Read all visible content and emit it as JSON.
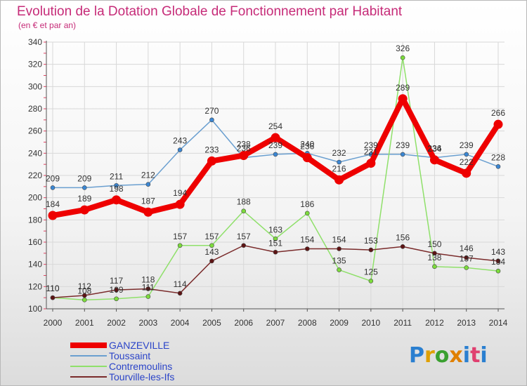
{
  "chart_data": {
    "type": "line",
    "title": "Evolution de la Dotation Globale de Fonctionnement par Habitant",
    "subtitle": "(en € et par an)",
    "x": [
      "2000",
      "2001",
      "2002",
      "2003",
      "2004",
      "2005",
      "2006",
      "2007",
      "2008",
      "2009",
      "2010",
      "2011",
      "2012",
      "2013",
      "2014"
    ],
    "ylim": [
      100,
      340
    ],
    "yticks": [
      100,
      120,
      140,
      160,
      180,
      200,
      220,
      240,
      260,
      280,
      300,
      320,
      340
    ],
    "grid": true,
    "legend_position": "bottom-left",
    "series": [
      {
        "name": "Toussaint",
        "color": "#6a9fd0",
        "point_color": "#3b87d4",
        "values": [
          209,
          209,
          211,
          212,
          243,
          270,
          236,
          239,
          240,
          232,
          239,
          239,
          236,
          239,
          228
        ]
      },
      {
        "name": "Contremoulins",
        "color": "#8fe06a",
        "point_color": "#7cdc3c",
        "values": [
          110,
          108,
          109,
          111,
          157,
          157,
          188,
          163,
          186,
          135,
          125,
          326,
          138,
          137,
          134
        ]
      },
      {
        "name": "Tourville-les-Ifs",
        "color": "#7a2b2b",
        "point_color": "#5e1414",
        "values": [
          110,
          112,
          117,
          118,
          114,
          143,
          157,
          151,
          154,
          154,
          153,
          156,
          150,
          146,
          143
        ]
      },
      {
        "name": "GANZEVILLE",
        "color": "#ee0000",
        "point_color": "#ee0000",
        "values": [
          184,
          189,
          198,
          187,
          194,
          233,
          238,
          254,
          236,
          216,
          231,
          289,
          234,
          222,
          266
        ]
      }
    ],
    "data_labels": [
      {
        "series": 3,
        "i": 0,
        "text": "184"
      },
      {
        "series": 3,
        "i": 1,
        "text": "189"
      },
      {
        "series": 3,
        "i": 2,
        "text": "198"
      },
      {
        "series": 3,
        "i": 3,
        "text": "187"
      },
      {
        "series": 3,
        "i": 4,
        "text": "194"
      },
      {
        "series": 3,
        "i": 5,
        "text": "233"
      },
      {
        "series": 3,
        "i": 6,
        "text": "238"
      },
      {
        "series": 3,
        "i": 7,
        "text": "254"
      },
      {
        "series": 3,
        "i": 8,
        "text": "236"
      },
      {
        "series": 3,
        "i": 9,
        "text": "216"
      },
      {
        "series": 3,
        "i": 10,
        "text": "231"
      },
      {
        "series": 3,
        "i": 11,
        "text": "289"
      },
      {
        "series": 3,
        "i": 12,
        "text": "234"
      },
      {
        "series": 3,
        "i": 13,
        "text": "222"
      },
      {
        "series": 3,
        "i": 14,
        "text": "266"
      },
      {
        "series": 0,
        "i": 0,
        "text": "209"
      },
      {
        "series": 0,
        "i": 1,
        "text": "209"
      },
      {
        "series": 0,
        "i": 2,
        "text": "211"
      },
      {
        "series": 0,
        "i": 3,
        "text": "212"
      },
      {
        "series": 0,
        "i": 4,
        "text": "243"
      },
      {
        "series": 0,
        "i": 5,
        "text": "270"
      },
      {
        "series": 0,
        "i": 6,
        "text": "236"
      },
      {
        "series": 0,
        "i": 7,
        "text": "239"
      },
      {
        "series": 0,
        "i": 8,
        "text": "240"
      },
      {
        "series": 0,
        "i": 9,
        "text": "232"
      },
      {
        "series": 0,
        "i": 10,
        "text": "239"
      },
      {
        "series": 0,
        "i": 11,
        "text": "239"
      },
      {
        "series": 0,
        "i": 12,
        "text": "236"
      },
      {
        "series": 0,
        "i": 13,
        "text": "239"
      },
      {
        "series": 0,
        "i": 14,
        "text": "228"
      },
      {
        "series": 1,
        "i": 0,
        "text": "110"
      },
      {
        "series": 1,
        "i": 1,
        "text": "108"
      },
      {
        "series": 1,
        "i": 2,
        "text": "109"
      },
      {
        "series": 1,
        "i": 3,
        "text": "111"
      },
      {
        "series": 1,
        "i": 4,
        "text": "157"
      },
      {
        "series": 1,
        "i": 5,
        "text": "157"
      },
      {
        "series": 1,
        "i": 6,
        "text": "188"
      },
      {
        "series": 1,
        "i": 7,
        "text": "163"
      },
      {
        "series": 1,
        "i": 8,
        "text": "186"
      },
      {
        "series": 1,
        "i": 9,
        "text": "135"
      },
      {
        "series": 1,
        "i": 10,
        "text": "125"
      },
      {
        "series": 1,
        "i": 11,
        "text": "326"
      },
      {
        "series": 1,
        "i": 12,
        "text": "138"
      },
      {
        "series": 1,
        "i": 13,
        "text": "137"
      },
      {
        "series": 1,
        "i": 14,
        "text": "134"
      },
      {
        "series": 2,
        "i": 0,
        "text": "110"
      },
      {
        "series": 2,
        "i": 1,
        "text": "112"
      },
      {
        "series": 2,
        "i": 2,
        "text": "117"
      },
      {
        "series": 2,
        "i": 3,
        "text": "118"
      },
      {
        "series": 2,
        "i": 4,
        "text": "114"
      },
      {
        "series": 2,
        "i": 5,
        "text": "143"
      },
      {
        "series": 2,
        "i": 6,
        "text": "157"
      },
      {
        "series": 2,
        "i": 7,
        "text": "151"
      },
      {
        "series": 2,
        "i": 8,
        "text": "154"
      },
      {
        "series": 2,
        "i": 9,
        "text": "154"
      },
      {
        "series": 2,
        "i": 10,
        "text": "153"
      },
      {
        "series": 2,
        "i": 11,
        "text": "156"
      },
      {
        "series": 2,
        "i": 12,
        "text": "150"
      },
      {
        "series": 2,
        "i": 13,
        "text": "146"
      },
      {
        "series": 2,
        "i": 14,
        "text": "143"
      }
    ]
  },
  "legend": {
    "entries": [
      "GANZEVILLE",
      "Toussaint",
      "Contremoulins",
      "Tourville-les-Ifs"
    ]
  },
  "logo": {
    "text": "Proxiti",
    "letters": [
      {
        "ch": "P",
        "color": "#2a7fd0"
      },
      {
        "ch": "r",
        "color": "#e0a000"
      },
      {
        "ch": "o",
        "color": "#3aa030"
      },
      {
        "ch": "x",
        "color": "#e08000"
      },
      {
        "ch": "i",
        "color": "#2a7fd0"
      },
      {
        "ch": "t",
        "color": "#e04070"
      },
      {
        "ch": "i",
        "color": "#2a7fd0"
      }
    ]
  }
}
